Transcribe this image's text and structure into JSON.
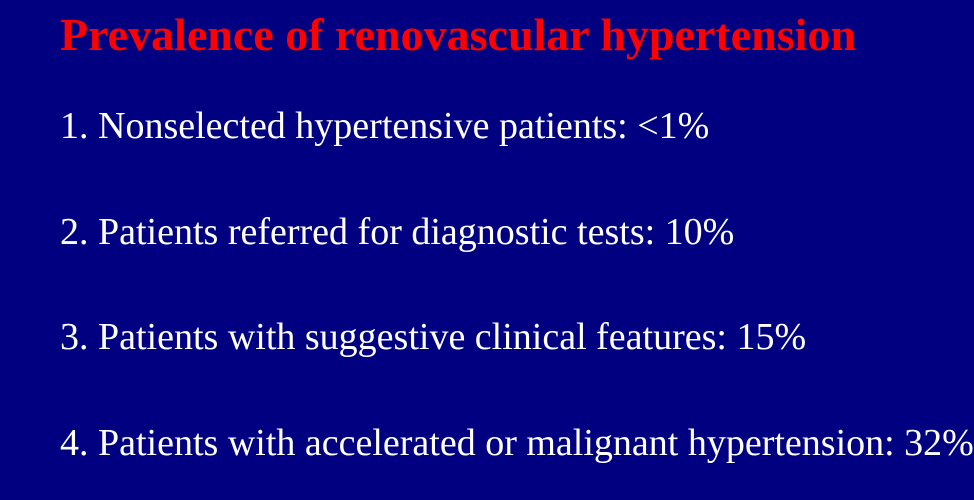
{
  "slide": {
    "title": "Prevalence of renovascular hypertension",
    "items": [
      "1.  Nonselected hypertensive patients: <1%",
      "2.  Patients referred for diagnostic tests: 10%",
      "3.  Patients with suggestive clinical features: 15%",
      "4.  Patients with accelerated or malignant hypertension: 32%"
    ],
    "colors": {
      "background": "#000080",
      "title": "#ff0000",
      "body_text": "#ffffff"
    },
    "typography": {
      "font_family": "Times New Roman",
      "title_fontsize_pt": 34,
      "title_weight": "bold",
      "body_fontsize_pt": 28,
      "body_weight": "normal"
    }
  }
}
